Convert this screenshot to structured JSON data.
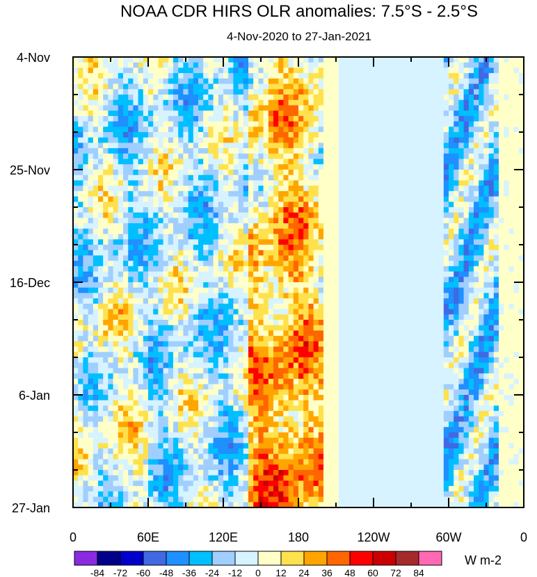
{
  "chart_data": {
    "type": "heatmap",
    "title": "NOAA CDR HIRS OLR anomalies: 7.5°S - 2.5°S",
    "subtitle": "4-Nov-2020 to 27-Jan-2021",
    "xlabel": "",
    "ylabel": "",
    "x_ticks": [
      "0",
      "60E",
      "120E",
      "180",
      "120W",
      "60W",
      "0"
    ],
    "y_ticks": [
      "4-Nov",
      "25-Nov",
      "16-Dec",
      "6-Jan",
      "27-Jan"
    ],
    "x_range_deg": [
      0,
      360
    ],
    "y_range_days": [
      0,
      84
    ],
    "colorbar": {
      "unit": "W m-2",
      "levels": [
        "-84",
        "-72",
        "-60",
        "-48",
        "-36",
        "-24",
        "-12",
        "0",
        "12",
        "24",
        "36",
        "48",
        "60",
        "72",
        "84"
      ],
      "colors": [
        "#8a2be2",
        "#00008b",
        "#0000cd",
        "#4169e1",
        "#1e90ff",
        "#00bfff",
        "#a0cfff",
        "#d7f3ff",
        "#ffffc8",
        "#ffe14d",
        "#ffa500",
        "#ff6600",
        "#ff0000",
        "#cc0000",
        "#a52a2a",
        "#ff69b4"
      ]
    }
  }
}
